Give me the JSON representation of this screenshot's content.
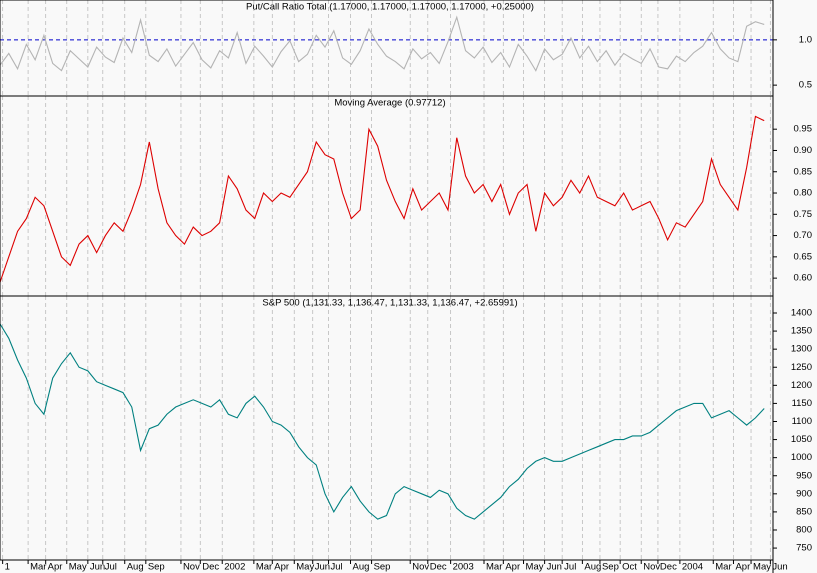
{
  "chart_data": [
    {
      "type": "line",
      "title": "Put/Call Ratio Total (1.17000, 1.17000, 1.17000, 1.17000, +0.25000)",
      "color": "#b4b4b4",
      "values": [
        0.72,
        0.85,
        0.68,
        0.95,
        0.78,
        1.05,
        0.74,
        0.66,
        0.88,
        0.79,
        0.7,
        0.92,
        0.81,
        0.75,
        1.02,
        0.86,
        1.22,
        0.83,
        0.76,
        0.9,
        0.71,
        0.84,
        0.97,
        0.78,
        0.69,
        0.88,
        0.8,
        1.08,
        0.74,
        0.93,
        0.82,
        0.7,
        0.87,
        0.99,
        0.76,
        0.84,
        1.05,
        0.92,
        1.1,
        0.8,
        0.73,
        0.88,
        1.12,
        0.95,
        0.82,
        0.76,
        0.68,
        0.9,
        0.79,
        0.86,
        0.74,
        0.98,
        1.25,
        0.88,
        0.8,
        0.92,
        0.75,
        0.86,
        0.7,
        0.95,
        0.82,
        0.66,
        0.9,
        0.78,
        0.84,
        1.02,
        0.8,
        0.93,
        0.76,
        0.88,
        0.72,
        0.85,
        0.79,
        0.74,
        0.9,
        0.7,
        0.68,
        0.82,
        0.76,
        0.86,
        0.93,
        1.08,
        0.9,
        0.8,
        0.76,
        1.15,
        1.2,
        1.17
      ],
      "reference_line": 1,
      "reference_color": "#0000cc",
      "xlim": [
        0,
        88
      ],
      "ylim": [
        0.38,
        1.44
      ],
      "yticks": [
        {
          "value": 0.5,
          "label": "0.5"
        },
        {
          "value": 1,
          "label": "1.0"
        }
      ]
    },
    {
      "type": "line",
      "title": "Moving Average (0.97712)",
      "color": "#dd0000",
      "values": [
        0.59,
        0.65,
        0.71,
        0.74,
        0.79,
        0.77,
        0.71,
        0.65,
        0.63,
        0.68,
        0.7,
        0.66,
        0.7,
        0.73,
        0.71,
        0.76,
        0.82,
        0.92,
        0.81,
        0.73,
        0.7,
        0.68,
        0.72,
        0.7,
        0.71,
        0.73,
        0.84,
        0.81,
        0.76,
        0.74,
        0.8,
        0.78,
        0.8,
        0.79,
        0.82,
        0.85,
        0.92,
        0.89,
        0.88,
        0.8,
        0.74,
        0.76,
        0.95,
        0.91,
        0.83,
        0.78,
        0.74,
        0.81,
        0.76,
        0.78,
        0.8,
        0.76,
        0.93,
        0.84,
        0.8,
        0.82,
        0.78,
        0.82,
        0.75,
        0.8,
        0.82,
        0.71,
        0.8,
        0.77,
        0.79,
        0.83,
        0.8,
        0.84,
        0.79,
        0.78,
        0.77,
        0.8,
        0.76,
        0.77,
        0.78,
        0.74,
        0.69,
        0.73,
        0.72,
        0.75,
        0.78,
        0.88,
        0.82,
        0.79,
        0.76,
        0.86,
        0.98,
        0.97
      ],
      "xlim": [
        0,
        88
      ],
      "ylim": [
        0.558,
        1.028
      ],
      "yticks": [
        {
          "value": 0.6,
          "label": "0.60"
        },
        {
          "value": 0.65,
          "label": "0.65"
        },
        {
          "value": 0.7,
          "label": "0.70"
        },
        {
          "value": 0.75,
          "label": "0.75"
        },
        {
          "value": 0.8,
          "label": "0.80"
        },
        {
          "value": 0.85,
          "label": "0.85"
        },
        {
          "value": 0.9,
          "label": "0.90"
        },
        {
          "value": 0.95,
          "label": "0.95"
        }
      ]
    },
    {
      "type": "line",
      "title": "S&P 500 (1,131.33, 1,136.47, 1,131.33, 1,136.47, +2.65991)",
      "color": "#008080",
      "values": [
        1370,
        1330,
        1270,
        1220,
        1150,
        1120,
        1220,
        1260,
        1290,
        1250,
        1240,
        1210,
        1200,
        1190,
        1180,
        1140,
        1020,
        1080,
        1090,
        1120,
        1140,
        1150,
        1160,
        1150,
        1140,
        1160,
        1120,
        1110,
        1150,
        1170,
        1140,
        1100,
        1090,
        1070,
        1030,
        1000,
        980,
        900,
        850,
        890,
        920,
        880,
        850,
        830,
        840,
        900,
        920,
        910,
        900,
        890,
        910,
        900,
        860,
        840,
        830,
        850,
        870,
        890,
        920,
        940,
        970,
        990,
        1000,
        990,
        990,
        1000,
        1010,
        1020,
        1030,
        1040,
        1050,
        1050,
        1060,
        1060,
        1070,
        1090,
        1110,
        1130,
        1140,
        1150,
        1150,
        1110,
        1120,
        1130,
        1110,
        1090,
        1110,
        1136
      ],
      "xlim": [
        0,
        88
      ],
      "ylim": [
        717,
        1447
      ],
      "yticks": [
        750,
        800,
        850,
        900,
        950,
        1000,
        1050,
        1100,
        1150,
        1200,
        1250,
        1300,
        1350,
        1400
      ],
      "xticks": [
        {
          "value": 0.3,
          "label": "1"
        },
        {
          "value": 3.2,
          "label": "Mar"
        },
        {
          "value": 5.2,
          "label": "Apr"
        },
        {
          "value": 7.6,
          "label": "May"
        },
        {
          "value": 10.0,
          "label": "Jun"
        },
        {
          "value": 11.7,
          "label": "Jul"
        },
        {
          "value": 14.2,
          "label": "Aug"
        },
        {
          "value": 16.6,
          "label": "Sep"
        },
        {
          "value": 20.6,
          "label": "Nov"
        },
        {
          "value": 22.8,
          "label": "Dec"
        },
        {
          "value": 25.3,
          "label": "2002"
        },
        {
          "value": 28.9,
          "label": "Mar"
        },
        {
          "value": 31.0,
          "label": "Apr"
        },
        {
          "value": 33.5,
          "label": "May"
        },
        {
          "value": 35.6,
          "label": "Jun"
        },
        {
          "value": 37.4,
          "label": "Jul"
        },
        {
          "value": 39.9,
          "label": "Aug"
        },
        {
          "value": 42.3,
          "label": "Sep"
        },
        {
          "value": 46.7,
          "label": "Nov"
        },
        {
          "value": 48.7,
          "label": "Dec"
        },
        {
          "value": 51.3,
          "label": "2003"
        },
        {
          "value": 55.1,
          "label": "Mar"
        },
        {
          "value": 57.3,
          "label": "Apr"
        },
        {
          "value": 59.6,
          "label": "May"
        },
        {
          "value": 62.0,
          "label": "Jun"
        },
        {
          "value": 64.0,
          "label": "Jul"
        },
        {
          "value": 66.3,
          "label": "Aug"
        },
        {
          "value": 68.3,
          "label": "Sep"
        },
        {
          "value": 70.6,
          "label": "Oct"
        },
        {
          "value": 73.0,
          "label": "Nov"
        },
        {
          "value": 74.9,
          "label": "Dec"
        },
        {
          "value": 77.4,
          "label": "2004"
        },
        {
          "value": 81.2,
          "label": "Mar"
        },
        {
          "value": 83.5,
          "label": "Apr"
        },
        {
          "value": 85.5,
          "label": "May"
        },
        {
          "value": 87.7,
          "label": "Jun"
        }
      ]
    }
  ]
}
